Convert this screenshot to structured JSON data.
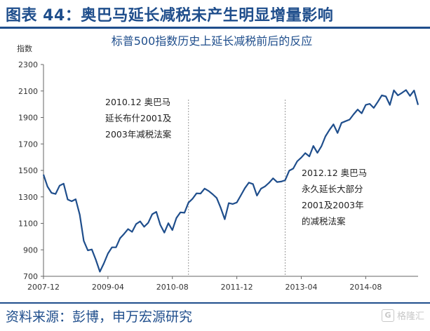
{
  "header": {
    "title": "图表 44：奥巴马延长减税未产生明显增量影响"
  },
  "footer": {
    "source": "资料来源：彭博，申万宏源研究",
    "watermark_glyph": "G",
    "watermark_text": "格隆汇"
  },
  "colors": {
    "line": "#1f4e8c",
    "title": "#1f4e8c",
    "divider": "#9a9a9a",
    "axis": "#666666"
  },
  "chart_data": {
    "type": "line",
    "title": "标普500指数历史上延长减税前后的反应",
    "ylabel": "指数",
    "xlabel": "",
    "ylim": [
      700,
      2300
    ],
    "yticks": [
      700,
      900,
      1100,
      1300,
      1500,
      1700,
      1900,
      2100,
      2300
    ],
    "xticks": [
      "2007-12",
      "2009-04",
      "2010-08",
      "2011-12",
      "2013-04",
      "2014-08"
    ],
    "grid": false,
    "series": [
      {
        "values": [
          1468,
          1378,
          1330,
          1322,
          1385,
          1400,
          1280,
          1267,
          1282,
          1165,
          968,
          896,
          903,
          825,
          735,
          798,
          872,
          919,
          919,
          987,
          1020,
          1057,
          1036,
          1095,
          1115,
          1074,
          1104,
          1169,
          1187,
          1089,
          1030,
          1101,
          1049,
          1141,
          1183,
          1180,
          1257,
          1286,
          1327,
          1325,
          1363,
          1345,
          1320,
          1292,
          1218,
          1131,
          1253,
          1246,
          1258,
          1312,
          1366,
          1408,
          1397,
          1310,
          1362,
          1379,
          1406,
          1440,
          1412,
          1416,
          1426,
          1498,
          1514,
          1569,
          1597,
          1631,
          1606,
          1685,
          1633,
          1682,
          1757,
          1806,
          1848,
          1783,
          1859,
          1872,
          1884,
          1924,
          1960,
          1931,
          1995,
          2003,
          1972,
          2018,
          2067,
          2059,
          1995,
          2105,
          2067,
          2086,
          2107,
          2063,
          2104,
          1995
        ]
      }
    ],
    "markers": [
      "2010-12",
      "2012-12"
    ],
    "annotations": [
      {
        "lines": [
          "2010.12 奥巴马",
          "延长布什2001及",
          "2003年减税法案"
        ]
      },
      {
        "lines": [
          "2012.12 奥巴马",
          "永久延长大部分",
          "2001及2003年",
          "的减税法案"
        ]
      }
    ]
  }
}
